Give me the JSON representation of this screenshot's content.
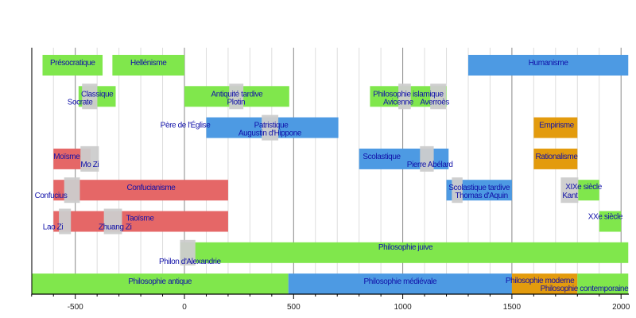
{
  "chart_data": {
    "type": "timeline",
    "title": "",
    "xlabel": "",
    "ylabel": "",
    "xlim": [
      -700,
      2040
    ],
    "x_ticks": [
      -500,
      0,
      500,
      1000,
      1500,
      2000
    ],
    "x_tick_labels": [
      "-500",
      "0",
      "500",
      "1000",
      "1500",
      "2000"
    ],
    "minor_tick_step": 100,
    "grid": true,
    "colors": {
      "antique": "#80e74c",
      "medieval": "#4d9ae3",
      "moderne": "#e39b0d",
      "orient": "#e56767",
      "person": "#cccccc",
      "text": "#1010a8"
    },
    "periods": [
      {
        "label": "Présocratique",
        "start": -650,
        "end": -375,
        "row": 0,
        "color": "antique",
        "label_align": "middle"
      },
      {
        "label": "Hellénisme",
        "start": -330,
        "end": 0,
        "row": 0,
        "color": "antique",
        "label_align": "middle"
      },
      {
        "label": "Humanisme",
        "start": 1300,
        "end": 2033,
        "row": 0,
        "color": "medieval",
        "label_align": "middle"
      },
      {
        "label": "Classique",
        "start": -485,
        "end": -315,
        "row": 1,
        "color": "antique",
        "label_align": "middle"
      },
      {
        "label": "Antiquité tardive",
        "start": 0,
        "end": 480,
        "row": 1,
        "color": "antique",
        "label_align": "middle"
      },
      {
        "label": "Philosophie islamique",
        "start": 850,
        "end": 1200,
        "row": 1,
        "color": "antique",
        "label_align": "middle"
      },
      {
        "label": "Patristique",
        "start": 100,
        "end": 705,
        "row": 2,
        "color": "medieval",
        "label_align": "middle",
        "pre_label": "Père de l'Église"
      },
      {
        "label": "Empirisme",
        "start": 1600,
        "end": 1800,
        "row": 2,
        "color": "moderne",
        "label_align": "middle"
      },
      {
        "label": "Moïsme",
        "start": -600,
        "end": -430,
        "row": 3,
        "color": "orient",
        "label_align": "middle"
      },
      {
        "label": "Scolastique",
        "start": 800,
        "end": 1210,
        "row": 3,
        "color": "medieval",
        "label_align": "middle"
      },
      {
        "label": "Rationalisme",
        "start": 1600,
        "end": 1800,
        "row": 3,
        "color": "moderne",
        "label_align": "middle"
      },
      {
        "label": "Confucianisme",
        "start": -600,
        "end": 200,
        "row": 4,
        "color": "orient",
        "label_align": "middle"
      },
      {
        "label": "Scolastique tardive",
        "start": 1200,
        "end": 1500,
        "row": 4,
        "color": "medieval",
        "label_align": "middle"
      },
      {
        "label": "XIXe siècle",
        "start": 1800,
        "end": 1900,
        "row": 4,
        "color": "antique",
        "label_align": "start"
      },
      {
        "label": "Taoïsme",
        "start": -600,
        "end": 200,
        "row": 5,
        "color": "orient",
        "label_align": "middle"
      },
      {
        "label": "XXe siècle",
        "start": 1900,
        "end": 2000,
        "row": 5,
        "color": "antique",
        "label_align": "start"
      },
      {
        "label": "Philosophie juive",
        "start": -20,
        "end": 2033,
        "row": 6,
        "color": "antique",
        "label_align": "middle"
      },
      {
        "label": "Philosophie antique",
        "start": -700,
        "end": 476,
        "row": 7,
        "color": "antique",
        "label_align": "middle"
      },
      {
        "label": "Philosophie médiévale",
        "start": 476,
        "end": 1500,
        "row": 7,
        "color": "medieval",
        "label_align": "middle"
      },
      {
        "label": "Philosophie moderne",
        "start": 1500,
        "end": 1800,
        "row": 7,
        "color": "moderne",
        "label_align": "start"
      },
      {
        "label": "Philosophie contemporaine",
        "start": 1800,
        "end": 2033,
        "row": 7,
        "color": "antique",
        "label_align": "end"
      }
    ],
    "people": [
      {
        "name": "Socrate",
        "start": -469,
        "end": -399,
        "row": 1
      },
      {
        "name": "Plotin",
        "start": 205,
        "end": 270,
        "row": 1
      },
      {
        "name": "Avicenne",
        "start": 980,
        "end": 1037,
        "row": 1
      },
      {
        "name": "Averroès",
        "start": 1126,
        "end": 1198,
        "row": 1
      },
      {
        "name": "Augustin d'Hippone",
        "start": 354,
        "end": 430,
        "row": 2
      },
      {
        "name": "Mo Zi",
        "start": -476,
        "end": -392,
        "row": 3
      },
      {
        "name": "Pierre Abélard",
        "start": 1079,
        "end": 1142,
        "row": 3
      },
      {
        "name": "Confucius",
        "start": -551,
        "end": -479,
        "row": 4
      },
      {
        "name": "Thomas d'Aquin",
        "start": 1225,
        "end": 1274,
        "row": 4
      },
      {
        "name": "Kant",
        "start": 1724,
        "end": 1804,
        "row": 4
      },
      {
        "name": "Lao Zi",
        "start": -575,
        "end": -520,
        "row": 5
      },
      {
        "name": "Zhuang Zi",
        "start": -369,
        "end": -286,
        "row": 5
      },
      {
        "name": "Philon d'Alexandrie",
        "start": -20,
        "end": 50,
        "row": 6
      }
    ]
  }
}
